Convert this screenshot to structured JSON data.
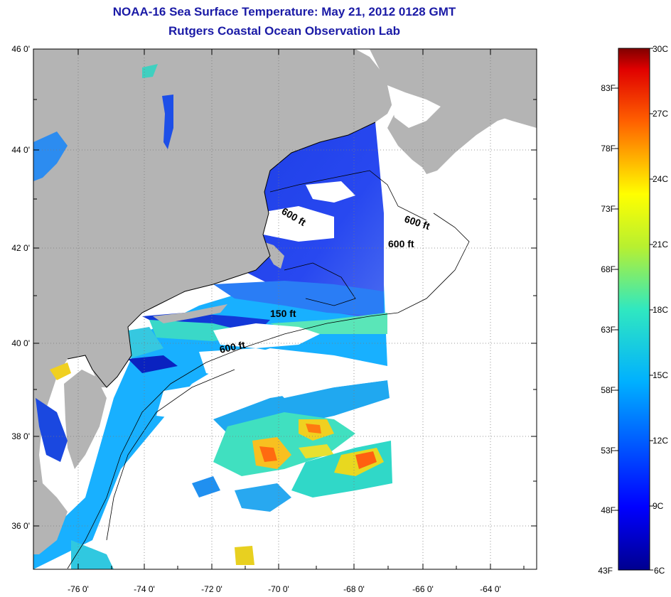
{
  "title_line1": "NOAA-16 Sea Surface Temperature:  May 21, 2012 0128 GMT",
  "title_line2": "Rutgers Coastal Ocean Observation Lab",
  "map": {
    "lon_range": [
      -77,
      -63
    ],
    "lat_range": [
      35,
      46
    ],
    "lon_labels": [
      {
        "value": -76,
        "text": "-76 0'"
      },
      {
        "value": -74,
        "text": "-74 0'"
      },
      {
        "value": -72,
        "text": "-72 0'"
      },
      {
        "value": -70,
        "text": "-70 0'"
      },
      {
        "value": -68,
        "text": "-68 0'"
      },
      {
        "value": -66,
        "text": "-66 0'"
      },
      {
        "value": -64,
        "text": "-64 0'"
      }
    ],
    "lat_labels": [
      {
        "value": 46,
        "text": "46 0'"
      },
      {
        "value": 44,
        "text": "44 0'"
      },
      {
        "value": 42,
        "text": "42 0'"
      },
      {
        "value": 40,
        "text": "40 0'"
      },
      {
        "value": 38,
        "text": "38 0'"
      },
      {
        "value": 36,
        "text": "36 0'"
      }
    ],
    "contour_labels": [
      "600 ft",
      "600 ft",
      "600 ft",
      "150 ft",
      "600 ft"
    ],
    "land_color": "#b4b4b4",
    "grid": true
  },
  "colorbar": {
    "celsius_labels": [
      "30C",
      "27C",
      "24C",
      "21C",
      "18C",
      "15C",
      "12C",
      "9C",
      "6C"
    ],
    "fahrenheit_labels": [
      "83F",
      "78F",
      "73F",
      "68F",
      "63F",
      "58F",
      "53F",
      "48F",
      "43F"
    ]
  }
}
